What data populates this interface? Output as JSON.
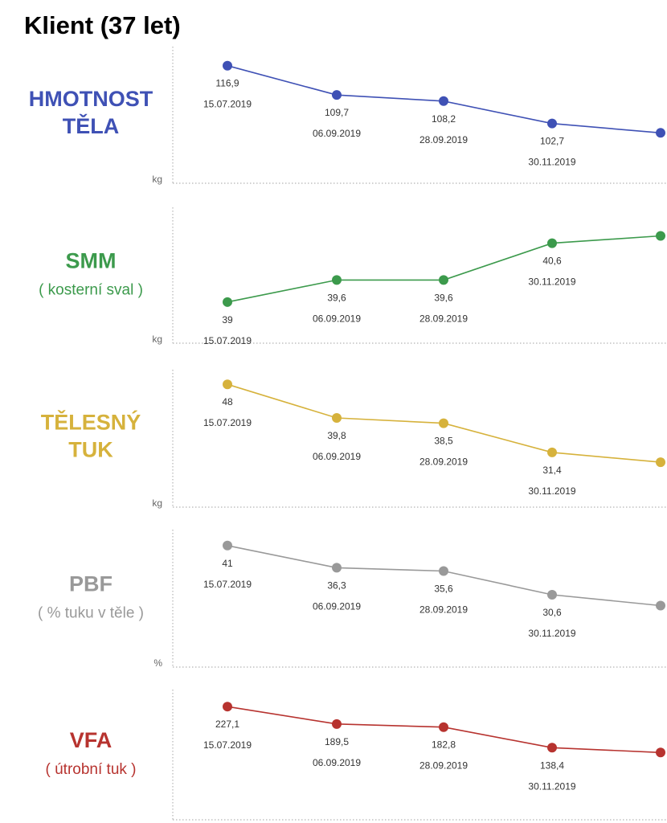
{
  "title": "Klient (37 let)",
  "chart_data": [
    {
      "type": "line",
      "title": "HMOTNOST TĚLA",
      "subtitle": "",
      "unit": "kg",
      "color": "#3f51b5",
      "x": [
        "15.07.2019",
        "06.09.2019",
        "28.09.2019",
        "30.11.2019",
        ""
      ],
      "values": [
        116.9,
        109.7,
        108.2,
        102.7,
        100.4
      ],
      "value_labels": [
        "116,9",
        "109,7",
        "108,2",
        "102,7",
        ""
      ],
      "ylim": [
        90,
        120
      ],
      "grid": false,
      "legend": "none"
    },
    {
      "type": "line",
      "title": "SMM",
      "subtitle": "( kosterní sval )",
      "unit": "kg",
      "color": "#3c9a4c",
      "x": [
        "15.07.2019",
        "06.09.2019",
        "28.09.2019",
        "30.11.2019",
        ""
      ],
      "values": [
        39,
        39.6,
        39.6,
        40.6,
        40.8
      ],
      "value_labels": [
        "39",
        "39,6",
        "39,6",
        "40,6",
        ""
      ],
      "ylim": [
        38.1,
        41.4
      ],
      "grid": false,
      "legend": "none"
    },
    {
      "type": "line",
      "title": "TĚLESNÝ TUK",
      "subtitle": "",
      "unit": "kg",
      "color": "#d6b23c",
      "x": [
        "15.07.2019",
        "06.09.2019",
        "28.09.2019",
        "30.11.2019",
        ""
      ],
      "values": [
        48,
        39.8,
        38.5,
        31.4,
        29.0
      ],
      "value_labels": [
        "48",
        "39,8",
        "38,5",
        "31,4",
        ""
      ],
      "ylim": [
        20,
        50
      ],
      "grid": false,
      "legend": "none"
    },
    {
      "type": "line",
      "title": "PBF",
      "subtitle": "( % tuku v těle )",
      "unit": "%",
      "color": "#999999",
      "x": [
        "15.07.2019",
        "06.09.2019",
        "28.09.2019",
        "30.11.2019",
        ""
      ],
      "values": [
        41,
        36.3,
        35.6,
        30.6,
        28.3
      ],
      "value_labels": [
        "41",
        "36,3",
        "35,6",
        "30,6",
        ""
      ],
      "ylim": [
        17,
        43
      ],
      "grid": false,
      "legend": "none"
    },
    {
      "type": "line",
      "title": "VFA",
      "subtitle": "( útrobní tuk )",
      "unit": "",
      "color": "#b7332f",
      "x": [
        "15.07.2019",
        "06.09.2019",
        "28.09.2019",
        "30.11.2019",
        ""
      ],
      "values": [
        227.1,
        189.5,
        182.8,
        138.4,
        128.0
      ],
      "value_labels": [
        "227,1",
        "189,5",
        "182,8",
        "138,4",
        ""
      ],
      "ylim": [
        0,
        250
      ],
      "grid": false,
      "legend": "none"
    }
  ]
}
